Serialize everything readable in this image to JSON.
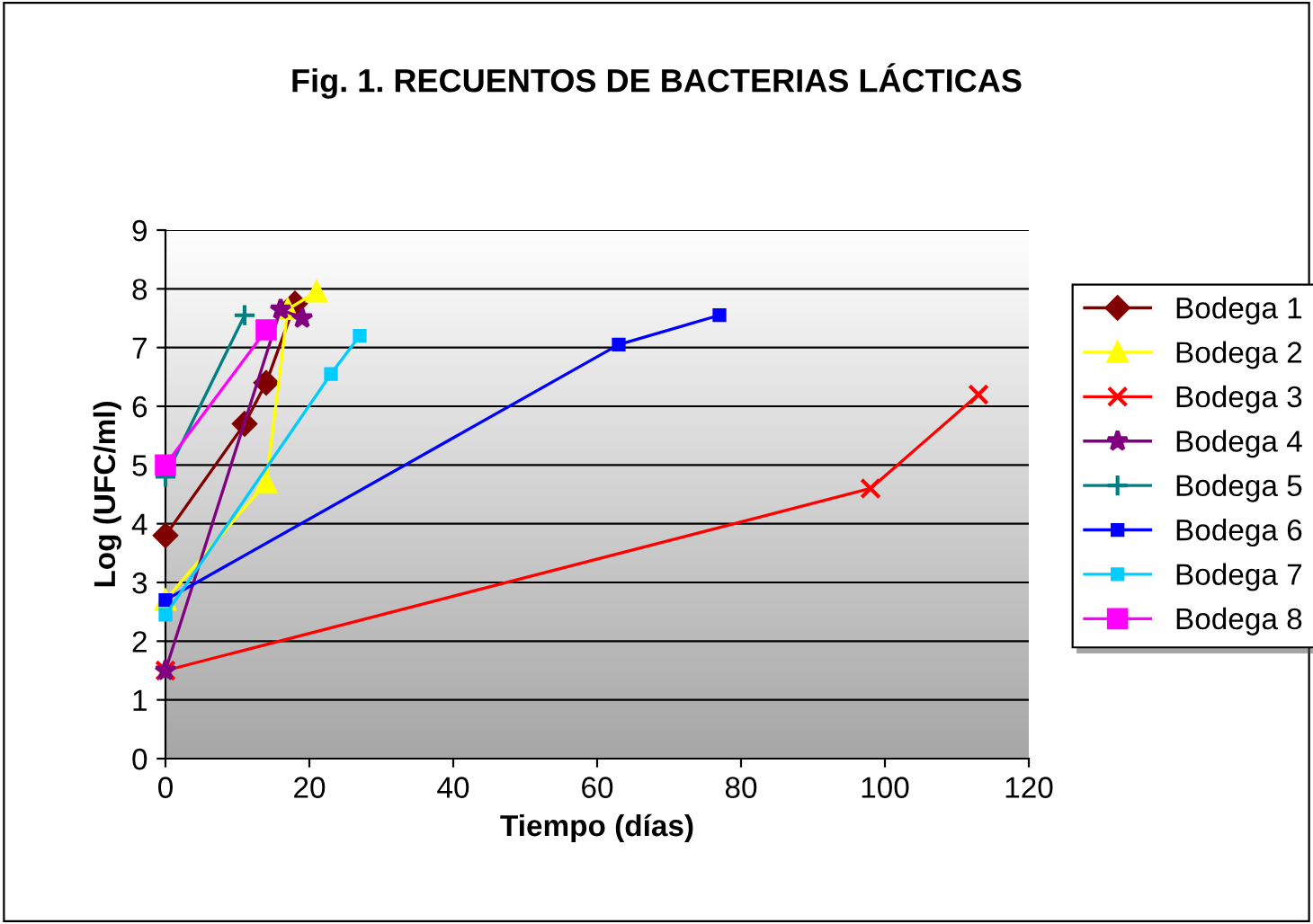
{
  "chart_data": {
    "type": "line",
    "title": "Fig. 1. RECUENTOS DE BACTERIAS LÁCTICAS",
    "xlabel": "Tiempo (días)",
    "ylabel": "Log (UFC/ml)",
    "xlim": [
      0,
      120
    ],
    "xticks": [
      0,
      20,
      40,
      60,
      80,
      100,
      120
    ],
    "ylim": [
      0,
      9
    ],
    "yticks": [
      0,
      1,
      2,
      3,
      4,
      5,
      6,
      7,
      8,
      9
    ],
    "grid": "y",
    "legend": "right",
    "series": [
      {
        "name": "Bodega 1",
        "color": "#800000",
        "marker": "diamond",
        "x": [
          0,
          11,
          14,
          18
        ],
        "values": [
          3.8,
          5.7,
          6.4,
          7.75
        ]
      },
      {
        "name": "Bodega 2",
        "color": "#ffff00",
        "marker": "triangle",
        "x": [
          0,
          14,
          17,
          21
        ],
        "values": [
          2.7,
          4.7,
          7.65,
          7.95
        ]
      },
      {
        "name": "Bodega 3",
        "color": "#ff0000",
        "marker": "cross",
        "x": [
          0,
          98,
          113
        ],
        "values": [
          1.5,
          4.6,
          6.2
        ]
      },
      {
        "name": "Bodega 4",
        "color": "#800080",
        "marker": "star",
        "x": [
          0,
          16,
          19
        ],
        "values": [
          1.5,
          7.65,
          7.5
        ]
      },
      {
        "name": "Bodega 5",
        "color": "#008080",
        "marker": "plus",
        "x": [
          0,
          11
        ],
        "values": [
          4.8,
          7.55
        ]
      },
      {
        "name": "Bodega 6",
        "color": "#0000ff",
        "marker": "square",
        "x": [
          0,
          63,
          77
        ],
        "values": [
          2.7,
          7.05,
          7.55
        ]
      },
      {
        "name": "Bodega 7",
        "color": "#00ccff",
        "marker": "square",
        "x": [
          0,
          23,
          27
        ],
        "values": [
          2.45,
          6.55,
          7.2
        ]
      },
      {
        "name": "Bodega 8",
        "color": "#ff00ff",
        "marker": "square",
        "x": [
          0,
          14
        ],
        "values": [
          5.0,
          7.3
        ]
      }
    ]
  }
}
